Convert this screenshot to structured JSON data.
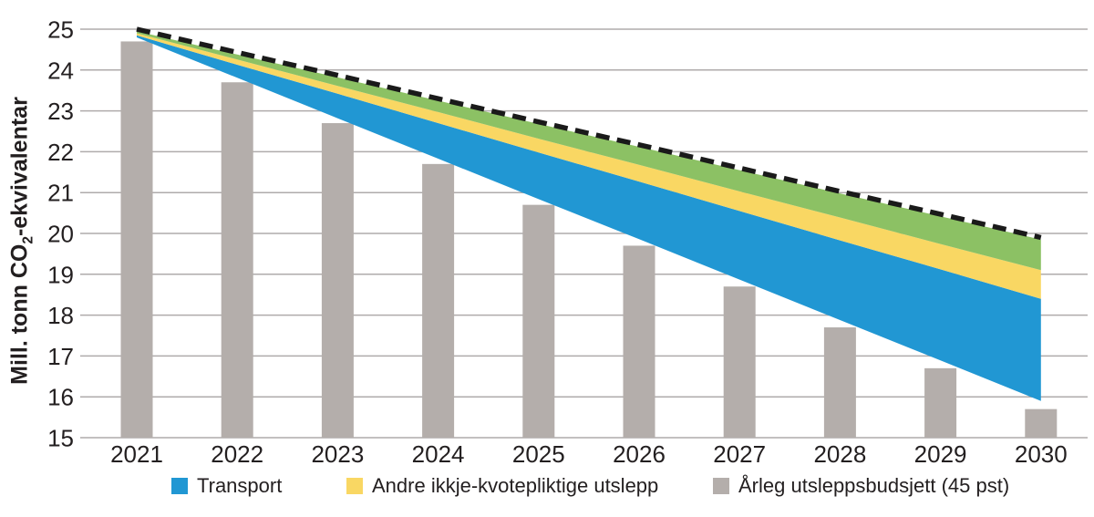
{
  "figure": {
    "ylabel_parts": [
      "Mill. tonn CO",
      "2",
      "-ekvivalentar"
    ],
    "legend": [
      {
        "label": "Transport",
        "color": "#2197D3"
      },
      {
        "label": "Andre ikkje-kvotepliktige utslepp",
        "color": "#F9D763"
      },
      {
        "label": "Årleg utsleppsbudsjett (45 pst)",
        "color": "#B4AEAB"
      }
    ]
  },
  "chart_data": {
    "type": "area",
    "subtype": "grouped figure: gray annual-budget bars + stacked reduction wedges (blue/yellow/green) + black dashed trajectory line",
    "x": [
      2021,
      2022,
      2023,
      2024,
      2025,
      2026,
      2027,
      2028,
      2029,
      2030
    ],
    "title": "",
    "xlabel": "",
    "ylabel": "Mill. tonn CO2-ekvivalentar",
    "ylim": [
      15,
      25
    ],
    "yticks": [
      25,
      24,
      23,
      22,
      21,
      20,
      19,
      18,
      17,
      16,
      15
    ],
    "grid": "horizontal gridlines at every 1.0 unit",
    "legend_position": "bottom",
    "colors": {
      "blue": "#2197D3",
      "yellow": "#F9D763",
      "green": "#8CC164",
      "bar_gray": "#B4AEAB",
      "dashed_line": "#1A1A1A",
      "gridline": "#AFABAB",
      "text": "#231F20"
    },
    "bars": {
      "name": "Årleg utsleppsbudsjett (45 pst)",
      "color": "#B4AEAB",
      "values": [
        24.7,
        23.7,
        22.7,
        21.7,
        20.7,
        19.7,
        18.7,
        17.7,
        16.7,
        15.7
      ]
    },
    "dashed_line": {
      "color": "#1A1A1A",
      "style": "dashed",
      "values": [
        25.0,
        24.43,
        23.87,
        23.3,
        22.73,
        22.17,
        21.6,
        21.03,
        20.47,
        19.9
      ]
    },
    "wedge_edges": {
      "green_top": [
        24.95,
        24.38,
        23.82,
        23.25,
        22.68,
        22.12,
        21.55,
        20.98,
        20.42,
        19.85
      ],
      "green_yellow": [
        24.9,
        24.26,
        23.61,
        22.97,
        22.32,
        21.68,
        21.03,
        20.39,
        19.74,
        19.1
      ],
      "yellow_blue": [
        24.85,
        24.13,
        23.42,
        22.7,
        21.98,
        21.27,
        20.55,
        19.83,
        19.12,
        18.4
      ],
      "blue_bottom": [
        24.8,
        23.81,
        22.82,
        21.83,
        20.84,
        19.86,
        18.87,
        17.88,
        16.89,
        15.9
      ]
    },
    "areas": [
      {
        "name": "Transport",
        "color": "#2197D3",
        "top_edge": "yellow_blue",
        "bottom_edge": "blue_bottom"
      },
      {
        "name": "Andre ikkje-kvotepliktige utslepp",
        "color": "#F9D763",
        "top_edge": "green_yellow",
        "bottom_edge": "yellow_blue"
      },
      {
        "name": "",
        "note": "green wedge, no legend entry visible",
        "color": "#8CC164",
        "top_edge": "green_top",
        "bottom_edge": "green_yellow"
      }
    ]
  }
}
